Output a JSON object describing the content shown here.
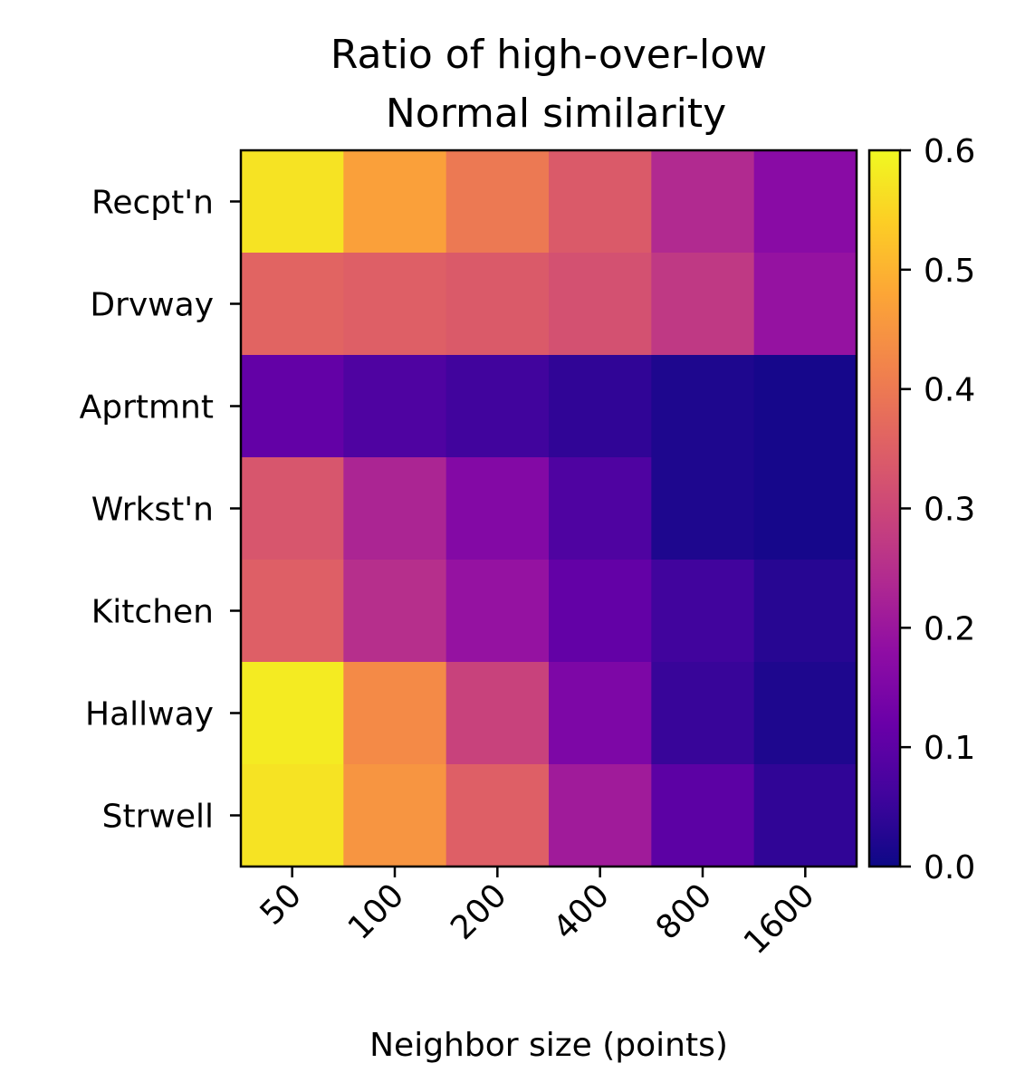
{
  "chart_data": {
    "type": "heatmap",
    "title": "Ratio of high-over-low\nNormal similarity",
    "title_lines": [
      "Ratio of high-over-low",
      "Normal similarity"
    ],
    "xlabel": "Neighbor size (points)",
    "ylabel": "",
    "x_categories": [
      "50",
      "100",
      "200",
      "400",
      "800",
      "1600"
    ],
    "y_categories": [
      "Recpt'n",
      "Drvway",
      "Aprtmnt",
      "Wrkst'n",
      "Kitchen",
      "Hallway",
      "Strwell"
    ],
    "values": [
      [
        0.57,
        0.47,
        0.4,
        0.34,
        0.24,
        0.17
      ],
      [
        0.36,
        0.35,
        0.34,
        0.32,
        0.27,
        0.19
      ],
      [
        0.11,
        0.08,
        0.06,
        0.04,
        0.02,
        0.01
      ],
      [
        0.33,
        0.23,
        0.16,
        0.08,
        0.02,
        0.01
      ],
      [
        0.35,
        0.25,
        0.19,
        0.11,
        0.06,
        0.03
      ],
      [
        0.58,
        0.43,
        0.29,
        0.15,
        0.05,
        0.02
      ],
      [
        0.57,
        0.45,
        0.35,
        0.21,
        0.1,
        0.04
      ]
    ],
    "colormap": "plasma",
    "colorbar": {
      "min": 0.0,
      "max": 0.6,
      "ticks": [
        "0.0",
        "0.1",
        "0.2",
        "0.3",
        "0.4",
        "0.5",
        "0.6"
      ]
    },
    "grid": false
  }
}
